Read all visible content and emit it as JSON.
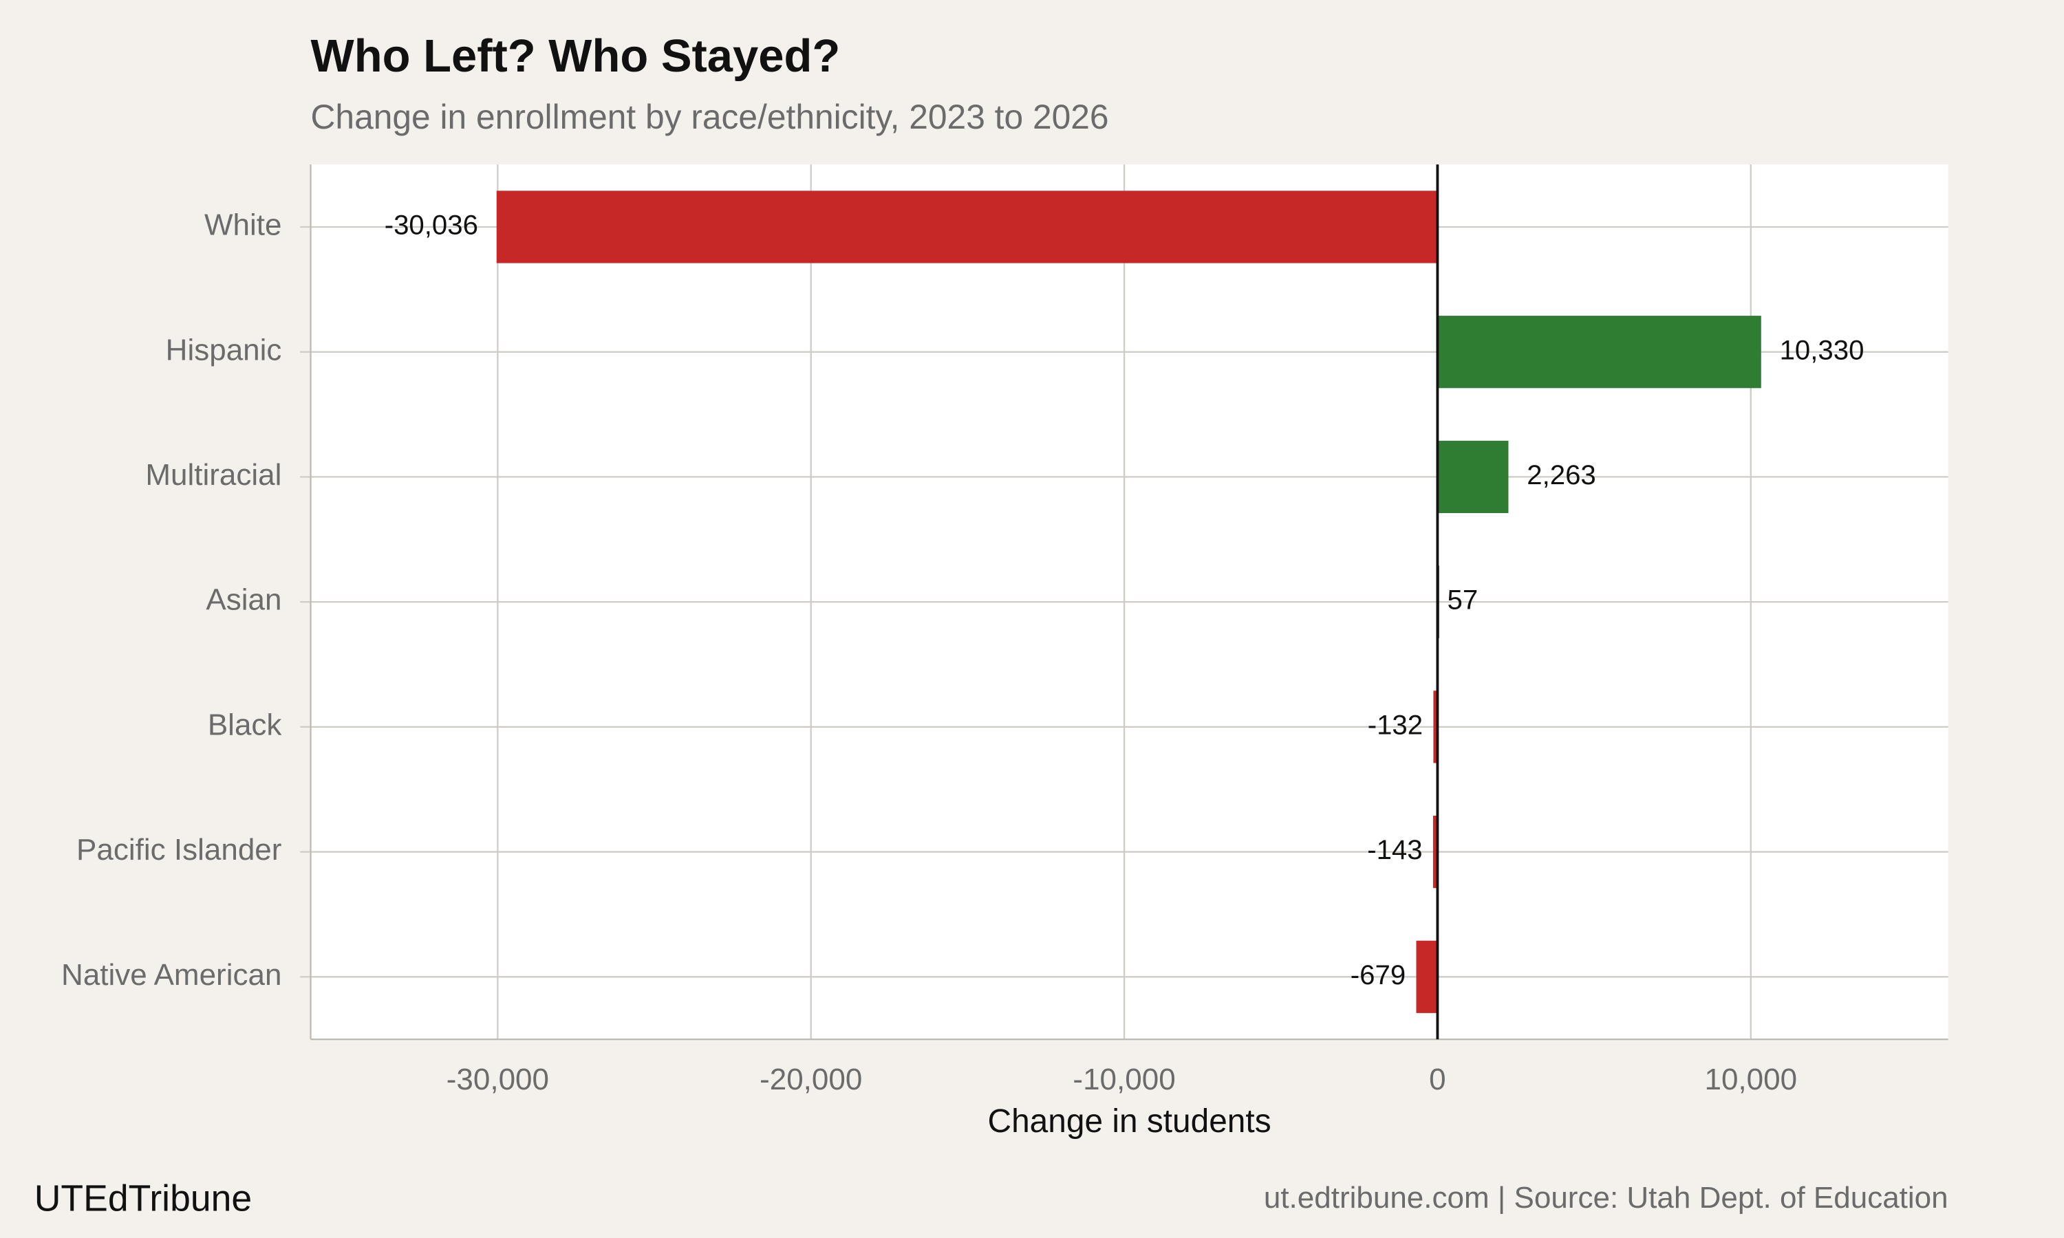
{
  "chart_data": {
    "type": "bar",
    "orientation": "horizontal",
    "title": "Who Left? Who Stayed?",
    "subtitle": "Change in enrollment by race/ethnicity, 2023 to 2026",
    "x_label": "Change in students",
    "brand": "UTEdTribune",
    "caption": "ut.edtribune.com | Source: Utah Dept. of Education",
    "categories": [
      "White",
      "Hispanic",
      "Multiracial",
      "Asian",
      "Black",
      "Pacific Islander",
      "Native American"
    ],
    "values": [
      -30036,
      10330,
      2263,
      57,
      -132,
      -143,
      -679
    ],
    "value_labels": [
      "-30,036",
      "10,330",
      "2,263",
      "57",
      "-132",
      "-143",
      "-679"
    ],
    "positive_color": "#2e7d32",
    "negative_color": "#c62828",
    "xlim": [
      -35970,
      16300
    ],
    "xticks": [
      {
        "value": -30000,
        "label": "-30,000"
      },
      {
        "value": -20000,
        "label": "-20,000"
      },
      {
        "value": -10000,
        "label": "-10,000"
      },
      0,
      {
        "value": 10000,
        "label": "10,000"
      }
    ],
    "grid": true
  }
}
